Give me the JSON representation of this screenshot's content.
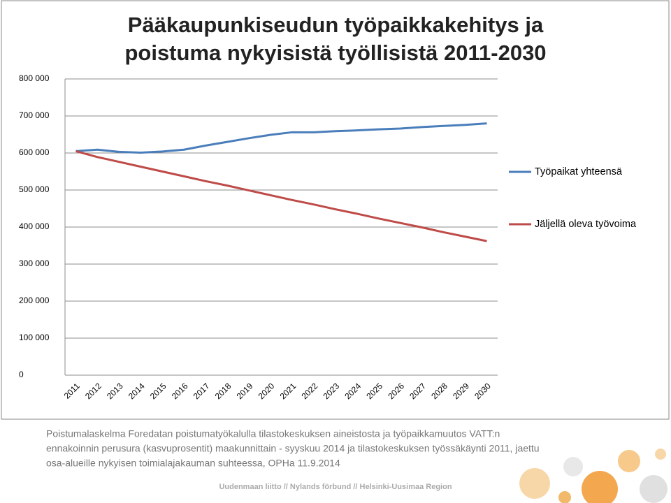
{
  "chart_data": {
    "type": "line",
    "title": [
      "Pääkaupunkiseudun työpaikkakehitys ja",
      "poistuma nykyisistä työllisistä 2011-2030"
    ],
    "categories": [
      "2011",
      "2012",
      "2013",
      "2014",
      "2015",
      "2016",
      "2017",
      "2018",
      "2019",
      "2020",
      "2021",
      "2022",
      "2023",
      "2024",
      "2025",
      "2026",
      "2027",
      "2028",
      "2029",
      "2030"
    ],
    "series": [
      {
        "name": "Työpaikat yhteensä",
        "color": "#4a7ebb",
        "values": [
          605000,
          609000,
          603000,
          601000,
          604000,
          609000,
          620000,
          630000,
          640000,
          649000,
          656000,
          656000,
          659000,
          661000,
          664000,
          666000,
          670000,
          673000,
          676000,
          680000
        ]
      },
      {
        "name": "Jäljellä oleva työvoima",
        "color": "#be4b48",
        "values": [
          605000,
          589000,
          576000,
          563000,
          550000,
          537000,
          524000,
          512000,
          499000,
          486000,
          473000,
          461000,
          448000,
          436000,
          423000,
          411000,
          399000,
          386000,
          374000,
          362000
        ]
      }
    ],
    "ylim": [
      0,
      800000
    ],
    "yticks": [
      0,
      {
        "value": 100000,
        "label": "100 000"
      },
      {
        "value": 200000,
        "label": "200 000"
      },
      {
        "value": 300000,
        "label": "300 000"
      },
      {
        "value": 400000,
        "label": "400 000"
      },
      {
        "value": 500000,
        "label": "500 000"
      },
      {
        "value": 600000,
        "label": "600 000"
      },
      {
        "value": 700000,
        "label": "700 000"
      },
      {
        "value": 800000,
        "label": "800 000"
      }
    ],
    "grid": true,
    "legend": "right"
  },
  "note": [
    "Poistumalaskelma Foredatan poistumatyökalulla tilastokeskuksen aineistosta ja työpaikkamuutos VATT:n",
    "ennakoinnin perusura (kasvuprosentit) maakunnittain - syyskuu 2014 ja tilastokeskuksen työssäkäynti 2011, jaettu",
    "osa-alueille nykyisen toimialajakauman suhteessa, OPHa 11.9.2014"
  ],
  "footer": "Uudenmaan liitto // Nylands förbund // Helsinki-Uusimaa Region"
}
